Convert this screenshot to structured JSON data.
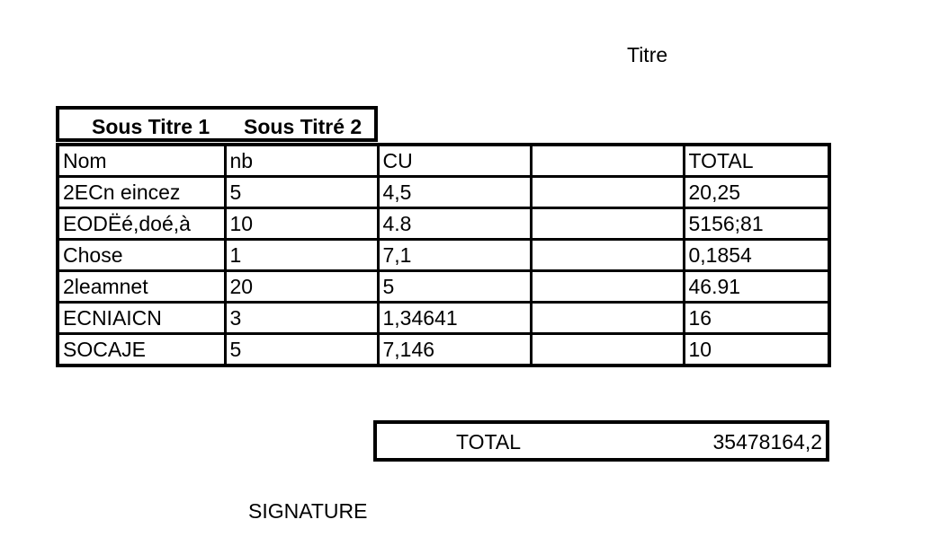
{
  "document": {
    "title": "Titre",
    "subtitles": [
      "Sous Titre 1",
      "Sous Titré 2"
    ],
    "table": {
      "headers": [
        "Nom",
        "nb",
        "CU",
        "",
        "TOTAL"
      ],
      "rows": [
        [
          "2ECn eincez",
          "5",
          "4,5",
          "",
          "20,25"
        ],
        [
          "EODËé,doé,à",
          "10",
          "4.8",
          "",
          "5156;81"
        ],
        [
          "Chose",
          "1",
          "7,1",
          "",
          "0,1854"
        ],
        [
          "2leamnet",
          "20",
          "5",
          "",
          "46.91"
        ],
        [
          "ECNIAICN",
          "3",
          "1,34641",
          "",
          "16"
        ],
        [
          "SOCAJE",
          "5",
          "7,146",
          "",
          "10"
        ]
      ]
    },
    "total": {
      "label": "TOTAL",
      "value": "35478164,2"
    },
    "signature": "SIGNATURE"
  }
}
